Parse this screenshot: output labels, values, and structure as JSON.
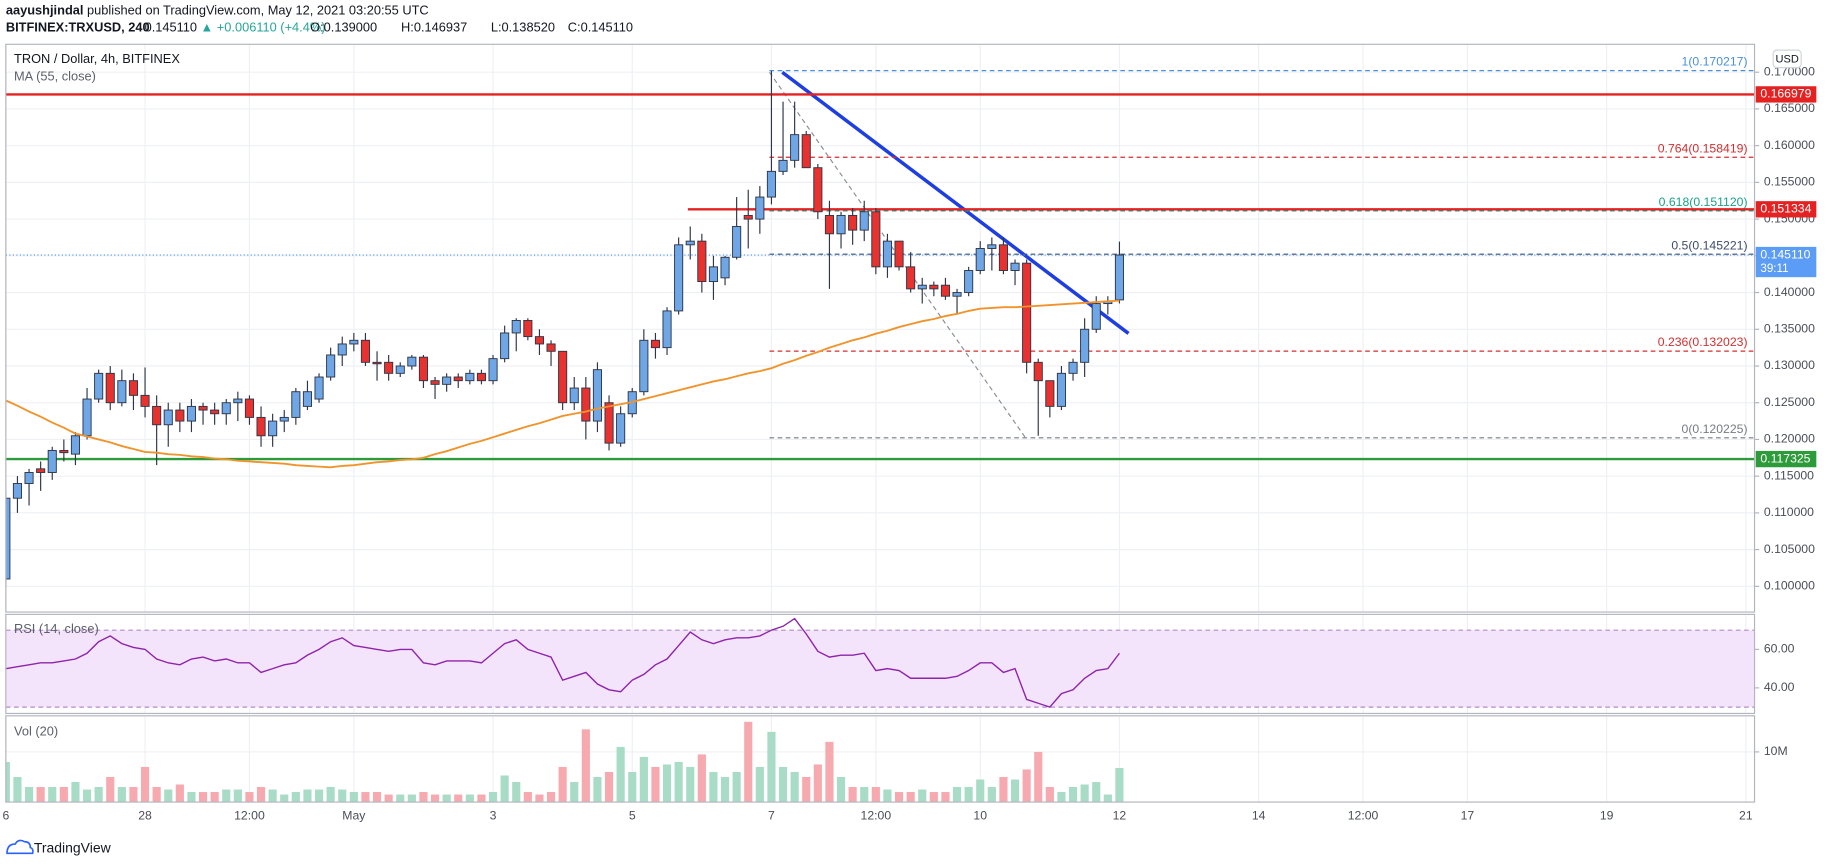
{
  "header": {
    "publisher": "aayushjindal",
    "published": " published on TradingView.com, May 12, 2021 03:20:55 UTC",
    "symbol": "BITFINEX:TRXUSD, 240",
    "last": "0.145110",
    "change": "▲ +0.006110 (+4.4%)",
    "open": "O:0.139000",
    "high": "H:0.146937",
    "low": "L:0.138520",
    "close": "C:0.145110"
  },
  "footer": {
    "brand": "TradingView"
  },
  "chart_data": [
    {
      "type": "candlestick",
      "title": "TRON / Dollar, 4h, BITFINEX",
      "currency": "USD",
      "up_color": "#6ea6e6",
      "down_color": "#e8322f",
      "wick_color": "#2f3646",
      "x": [
        0,
        1,
        2,
        3,
        4,
        5,
        6,
        7,
        8,
        9,
        10,
        11,
        12,
        13,
        14,
        15,
        16,
        17,
        18,
        19,
        20,
        21,
        22,
        23,
        24,
        25,
        26,
        27,
        28,
        29,
        30,
        31,
        32,
        33,
        34,
        35,
        36,
        37,
        38,
        39,
        40,
        41,
        42,
        43,
        44,
        45,
        46,
        47,
        48,
        49,
        50,
        51,
        52,
        53,
        54,
        55,
        56,
        57,
        58,
        59,
        60,
        61,
        62,
        63,
        64,
        65,
        66,
        67,
        68,
        69,
        70,
        71,
        72,
        73,
        74,
        75,
        76,
        77,
        78,
        79,
        80,
        81,
        82,
        83,
        84,
        85,
        86,
        87,
        88,
        89,
        90,
        91,
        92,
        93,
        94,
        95,
        96
      ],
      "open": [
        0.101,
        0.112,
        0.114,
        0.116,
        0.1155,
        0.1185,
        0.118,
        0.1205,
        0.1255,
        0.129,
        0.125,
        0.128,
        0.126,
        0.1245,
        0.122,
        0.124,
        0.1225,
        0.1245,
        0.124,
        0.1235,
        0.125,
        0.1255,
        0.123,
        0.1205,
        0.1225,
        0.123,
        0.1245,
        0.1255,
        0.1285,
        0.1315,
        0.133,
        0.1335,
        0.1305,
        0.1305,
        0.129,
        0.13,
        0.1312,
        0.128,
        0.1275,
        0.1285,
        0.128,
        0.129,
        0.128,
        0.131,
        0.1345,
        0.1362,
        0.134,
        0.133,
        0.132,
        0.125,
        0.127,
        0.1225,
        0.125,
        0.1195,
        0.1235,
        0.1265,
        0.1335,
        0.1325,
        0.1375,
        0.1465,
        0.147,
        0.1415,
        0.142,
        0.1448,
        0.1505,
        0.15,
        0.153,
        0.1565,
        0.158,
        0.1615,
        0.157,
        0.1505,
        0.148,
        0.1505,
        0.1485,
        0.151,
        0.1435,
        0.147,
        0.1435,
        0.1405,
        0.141,
        0.141,
        0.1395,
        0.14,
        0.143,
        0.146,
        0.1465,
        0.143,
        0.144,
        0.1305,
        0.128,
        0.1245,
        0.129,
        0.1305,
        0.135,
        0.1385,
        0.139
      ],
      "high": [
        0.113,
        0.115,
        0.116,
        0.117,
        0.119,
        0.12,
        0.121,
        0.127,
        0.1295,
        0.13,
        0.1295,
        0.129,
        0.1298,
        0.126,
        0.125,
        0.125,
        0.1255,
        0.125,
        0.125,
        0.1255,
        0.1265,
        0.126,
        0.1245,
        0.1235,
        0.124,
        0.127,
        0.128,
        0.129,
        0.1325,
        0.134,
        0.1345,
        0.1345,
        0.132,
        0.1315,
        0.1305,
        0.1315,
        0.1315,
        0.1285,
        0.129,
        0.129,
        0.1295,
        0.1295,
        0.1315,
        0.1355,
        0.1365,
        0.1365,
        0.135,
        0.1335,
        0.132,
        0.1285,
        0.1285,
        0.1305,
        0.126,
        0.1245,
        0.127,
        0.135,
        0.1345,
        0.138,
        0.1475,
        0.149,
        0.148,
        0.145,
        0.145,
        0.153,
        0.154,
        0.1545,
        0.1702,
        0.166,
        0.166,
        0.162,
        0.1575,
        0.1525,
        0.151,
        0.1515,
        0.1525,
        0.1515,
        0.148,
        0.147,
        0.1455,
        0.142,
        0.1415,
        0.142,
        0.1405,
        0.1435,
        0.147,
        0.1475,
        0.1475,
        0.1445,
        0.1445,
        0.131,
        0.128,
        0.13,
        0.131,
        0.1365,
        0.1395,
        0.1395,
        0.146937
      ],
      "low": [
        0.1,
        0.11,
        0.111,
        0.113,
        0.1145,
        0.117,
        0.1165,
        0.12,
        0.125,
        0.124,
        0.1245,
        0.124,
        0.123,
        0.1165,
        0.119,
        0.121,
        0.121,
        0.122,
        0.122,
        0.122,
        0.1225,
        0.122,
        0.119,
        0.119,
        0.121,
        0.122,
        0.124,
        0.125,
        0.128,
        0.13,
        0.132,
        0.13,
        0.128,
        0.128,
        0.1285,
        0.1295,
        0.127,
        0.1255,
        0.1265,
        0.127,
        0.1275,
        0.1275,
        0.1275,
        0.1305,
        0.132,
        0.1335,
        0.1315,
        0.13,
        0.124,
        0.124,
        0.12,
        0.121,
        0.1185,
        0.119,
        0.123,
        0.126,
        0.131,
        0.1315,
        0.137,
        0.1445,
        0.14,
        0.139,
        0.141,
        0.1445,
        0.146,
        0.148,
        0.152,
        0.156,
        0.157,
        0.157,
        0.15,
        0.1405,
        0.146,
        0.1465,
        0.147,
        0.1425,
        0.142,
        0.143,
        0.14,
        0.1385,
        0.1395,
        0.139,
        0.137,
        0.1395,
        0.1425,
        0.143,
        0.1425,
        0.141,
        0.129,
        0.1205,
        0.123,
        0.124,
        0.128,
        0.1285,
        0.1345,
        0.137,
        0.13852
      ],
      "close": [
        0.112,
        0.114,
        0.1155,
        0.1155,
        0.1185,
        0.1182,
        0.1205,
        0.1255,
        0.129,
        0.125,
        0.128,
        0.126,
        0.1245,
        0.122,
        0.124,
        0.1225,
        0.1245,
        0.124,
        0.1235,
        0.125,
        0.1255,
        0.123,
        0.1205,
        0.1225,
        0.123,
        0.1265,
        0.1265,
        0.1285,
        0.1315,
        0.133,
        0.1335,
        0.1305,
        0.1303,
        0.129,
        0.13,
        0.1312,
        0.128,
        0.1275,
        0.1285,
        0.128,
        0.129,
        0.128,
        0.131,
        0.1345,
        0.1362,
        0.134,
        0.133,
        0.132,
        0.125,
        0.127,
        0.1225,
        0.1295,
        0.1195,
        0.1235,
        0.1265,
        0.1335,
        0.1325,
        0.1375,
        0.1465,
        0.147,
        0.1415,
        0.1435,
        0.1448,
        0.149,
        0.15,
        0.153,
        0.1565,
        0.158,
        0.1615,
        0.157,
        0.151,
        0.148,
        0.1505,
        0.1485,
        0.151,
        0.1435,
        0.147,
        0.1435,
        0.1405,
        0.141,
        0.1405,
        0.1395,
        0.14,
        0.143,
        0.146,
        0.1465,
        0.143,
        0.144,
        0.1305,
        0.128,
        0.1245,
        0.129,
        0.1305,
        0.135,
        0.1385,
        0.1388,
        0.14511
      ],
      "series": [
        {
          "name": "MA (55, close)",
          "color": "#f0932b",
          "values": [
            0.1253,
            0.1246,
            0.1238,
            0.1231,
            0.1223,
            0.1216,
            0.1208,
            0.1204,
            0.12,
            0.1196,
            0.1191,
            0.1187,
            0.1183,
            0.1182,
            0.118,
            0.1179,
            0.1177,
            0.1176,
            0.1174,
            0.1173,
            0.1171,
            0.117,
            0.1169,
            0.1168,
            0.1167,
            0.1165,
            0.1164,
            0.1163,
            0.1162,
            0.1164,
            0.1165,
            0.1167,
            0.1169,
            0.117,
            0.1172,
            0.1173,
            0.1175,
            0.118,
            0.1184,
            0.1189,
            0.1194,
            0.1198,
            0.1203,
            0.1208,
            0.1213,
            0.1218,
            0.1222,
            0.1227,
            0.1232,
            0.1235,
            0.1238,
            0.1242,
            0.1245,
            0.1248,
            0.1251,
            0.1255,
            0.1259,
            0.1263,
            0.1267,
            0.1271,
            0.1275,
            0.1279,
            0.1282,
            0.1286,
            0.129,
            0.1293,
            0.1297,
            0.1303,
            0.1308,
            0.1314,
            0.1319,
            0.1325,
            0.133,
            0.1335,
            0.1339,
            0.1344,
            0.1348,
            0.1353,
            0.1357,
            0.1361,
            0.1364,
            0.1368,
            0.1371,
            0.1375,
            0.1378,
            0.1379,
            0.138,
            0.138,
            0.1381,
            0.1382,
            0.1383,
            0.1384,
            0.1385,
            0.1386,
            0.1387,
            0.1388,
            0.1389
          ]
        }
      ],
      "levels": [
        {
          "value": 0.166979,
          "label": "0.166979",
          "color": "#e52222"
        },
        {
          "value": 0.151334,
          "label": "0.151334",
          "color": "#e52222"
        },
        {
          "value": 0.117325,
          "label": "0.117325",
          "color": "#2e9b3a"
        }
      ],
      "fib": [
        {
          "value": 0.170217,
          "label": "1(0.170217)",
          "color": "#4a90d9"
        },
        {
          "value": 0.158419,
          "label": "0.764(0.158419)",
          "color": "#d32f2f"
        },
        {
          "value": 0.15112,
          "label": "0.618(0.151120)",
          "color": "#1aa08c"
        },
        {
          "value": 0.145221,
          "label": "0.5(0.145221)",
          "color": "#3d4a6b"
        },
        {
          "value": 0.132023,
          "label": "0.236(0.132023)",
          "color": "#d32f2f"
        },
        {
          "value": 0.120225,
          "label": "0(0.120225)",
          "color": "#787b86"
        }
      ],
      "last": {
        "value": 0.14511,
        "label": "0.145110",
        "countdown": "39:11",
        "color": "#5b9cf6"
      },
      "xlim": [
        0,
        150.75
      ],
      "xticks": [
        {
          "value": 0,
          "label": "6"
        },
        {
          "value": 12,
          "label": "28"
        },
        {
          "value": 21,
          "label": "12:00"
        },
        {
          "value": 30,
          "label": "May"
        },
        {
          "value": 42,
          "label": "3"
        },
        {
          "value": 54,
          "label": "5"
        },
        {
          "value": 66,
          "label": "7"
        },
        {
          "value": 75,
          "label": "12:00"
        },
        {
          "value": 84,
          "label": "10"
        },
        {
          "value": 96,
          "label": "12"
        },
        {
          "value": 108,
          "label": "14"
        },
        {
          "value": 117,
          "label": "12:00"
        },
        {
          "value": 126,
          "label": "17"
        },
        {
          "value": 138,
          "label": "19"
        },
        {
          "value": 150,
          "label": "21"
        }
      ],
      "ylim": [
        0.0965,
        0.1738
      ],
      "yticks": [
        {
          "value": 0.1,
          "label": "0.100000"
        },
        {
          "value": 0.105,
          "label": "0.105000"
        },
        {
          "value": 0.11,
          "label": "0.110000"
        },
        {
          "value": 0.115,
          "label": "0.115000"
        },
        {
          "value": 0.12,
          "label": "0.120000"
        },
        {
          "value": 0.125,
          "label": "0.125000"
        },
        {
          "value": 0.13,
          "label": "0.130000"
        },
        {
          "value": 0.135,
          "label": "0.135000"
        },
        {
          "value": 0.14,
          "label": "0.140000"
        },
        {
          "value": 0.145,
          "label": "0.145000"
        },
        {
          "value": 0.15,
          "label": "0.150000"
        },
        {
          "value": 0.155,
          "label": "0.155000"
        },
        {
          "value": 0.16,
          "label": "0.160000"
        },
        {
          "value": 0.165,
          "label": "0.165000"
        },
        {
          "value": 0.17,
          "label": "0.170000"
        }
      ],
      "grid": true
    },
    {
      "type": "line",
      "title": "RSI (14, close)",
      "color": "#8e24aa",
      "bands": [
        70,
        30
      ],
      "band_fill": "#f3e4fb",
      "values": [
        50,
        51,
        52,
        53,
        53,
        54,
        55,
        58,
        64,
        67,
        63,
        61,
        60,
        55,
        53,
        52,
        55,
        56,
        54,
        55,
        53,
        53,
        48,
        50,
        52,
        53,
        57,
        60,
        64,
        66,
        62,
        61,
        60,
        59,
        60,
        60,
        53,
        52,
        54,
        54,
        54,
        53,
        58,
        63,
        65,
        60,
        58,
        56,
        44,
        46,
        48,
        42,
        39,
        38,
        44,
        47,
        52,
        55,
        62,
        69,
        65,
        63,
        65,
        66,
        66,
        67,
        70,
        72,
        76,
        68,
        59,
        56,
        57,
        57,
        58,
        49,
        50,
        49,
        45,
        45,
        45,
        45,
        46,
        49,
        53,
        53,
        48,
        50,
        34,
        32,
        30,
        37,
        39,
        45,
        49,
        50,
        58
      ],
      "ylim": [
        26.7,
        78.2
      ],
      "yticks": [
        {
          "value": 60,
          "label": "60.00"
        },
        {
          "value": 40,
          "label": "40.00"
        }
      ]
    },
    {
      "type": "bar",
      "title": "Vol (20)",
      "up_color": "#a8dcc6",
      "down_color": "#f6aab0",
      "values": [
        8,
        5,
        3,
        3,
        3,
        3,
        4,
        2.5,
        3,
        5,
        3,
        3,
        7,
        3,
        2.5,
        3.5,
        2,
        2,
        2,
        2.5,
        2.5,
        2,
        3,
        2.5,
        1.5,
        2,
        2.5,
        2.5,
        3,
        2.5,
        2,
        2,
        2,
        1.5,
        1.5,
        1.5,
        2,
        1.5,
        1.5,
        1.5,
        1.5,
        1.5,
        2,
        5.3,
        4,
        2,
        1.5,
        2,
        7,
        4,
        14.5,
        5,
        6,
        11,
        6,
        9,
        7,
        7.5,
        8,
        7,
        9.5,
        6,
        5,
        6,
        16,
        7,
        14,
        7,
        6,
        5,
        7.5,
        12,
        5,
        3,
        3,
        3,
        2.5,
        2,
        2,
        2.5,
        2,
        2,
        3,
        3,
        4.5,
        3,
        5,
        4.5,
        6.5,
        10,
        3,
        2,
        3,
        3.5,
        4,
        1.5,
        6.8
      ],
      "ylim": [
        0,
        17.2
      ],
      "yticks": [
        {
          "value": 10,
          "label": "10M"
        }
      ]
    }
  ]
}
